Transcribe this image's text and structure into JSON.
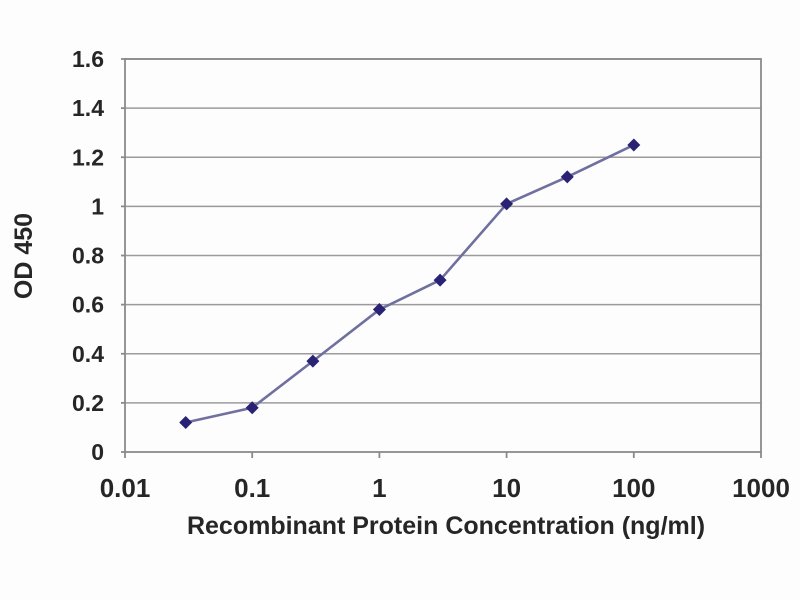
{
  "chart_data": {
    "type": "line",
    "xscale": "log",
    "x": [
      0.03,
      0.1,
      0.3,
      1,
      3,
      10,
      30,
      100
    ],
    "y": [
      0.12,
      0.18,
      0.37,
      0.58,
      0.7,
      1.01,
      1.12,
      1.25
    ],
    "marker": "diamond",
    "xlabel": "Recombinant Protein Concentration (ng/ml)",
    "ylabel": "OD 450",
    "xlim": [
      0.01,
      1000
    ],
    "ylim": [
      0,
      1.6
    ],
    "x_ticks": [
      {
        "value": 0.01,
        "label": "0.01"
      },
      {
        "value": 0.1,
        "label": "0.1"
      },
      {
        "value": 1,
        "label": "1"
      },
      {
        "value": 10,
        "label": "10"
      },
      {
        "value": 100,
        "label": "100"
      },
      {
        "value": 1000,
        "label": "1000"
      }
    ],
    "y_ticks": [
      {
        "value": 0,
        "label": "0"
      },
      {
        "value": 0.2,
        "label": "0.2"
      },
      {
        "value": 0.4,
        "label": "0.4"
      },
      {
        "value": 0.6,
        "label": "0.6"
      },
      {
        "value": 0.8,
        "label": "0.8"
      },
      {
        "value": 1,
        "label": "1"
      },
      {
        "value": 1.2,
        "label": "1.2"
      },
      {
        "value": 1.4,
        "label": "1.4"
      },
      {
        "value": 1.6,
        "label": "1.6"
      }
    ],
    "grid": "horizontal",
    "legend": "none",
    "colors": {
      "line": "#7070a0",
      "marker": "#2a2374",
      "grid": "#9b9b9b",
      "axis": "#8a8a8a",
      "text": "#262626",
      "background": "#fdfdfd"
    }
  }
}
